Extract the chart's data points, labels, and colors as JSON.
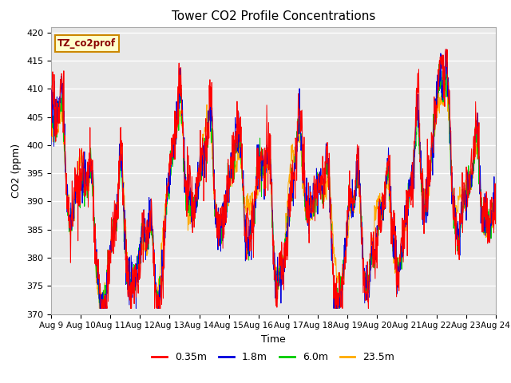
{
  "title": "Tower CO2 Profile Concentrations",
  "xlabel": "Time",
  "ylabel": "CO2 (ppm)",
  "ylim": [
    370,
    421
  ],
  "yticks": [
    370,
    375,
    380,
    385,
    390,
    395,
    400,
    405,
    410,
    415,
    420
  ],
  "xtick_labels": [
    "Aug 9",
    "Aug 10",
    "Aug 11",
    "Aug 12",
    "Aug 13",
    "Aug 14",
    "Aug 15",
    "Aug 16",
    "Aug 17",
    "Aug 18",
    "Aug 19",
    "Aug 20",
    "Aug 21",
    "Aug 22",
    "Aug 23",
    "Aug 24"
  ],
  "series_labels": [
    "0.35m",
    "1.8m",
    "6.0m",
    "23.5m"
  ],
  "series_colors": [
    "#ff0000",
    "#0000dd",
    "#00cc00",
    "#ffaa00"
  ],
  "legend_label": "TZ_co2prof",
  "legend_bg": "#ffffcc",
  "legend_border": "#cc8800",
  "plot_bg": "#e8e8e8",
  "fig_bg": "#ffffff",
  "n_points": 1440,
  "seed": 17
}
